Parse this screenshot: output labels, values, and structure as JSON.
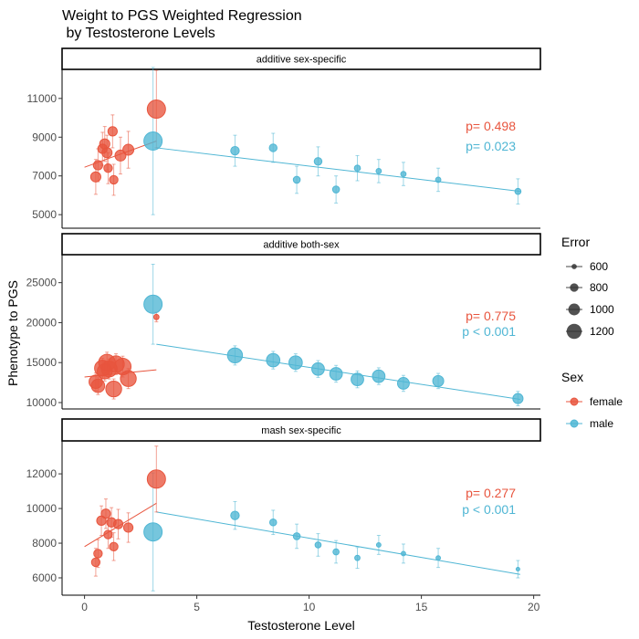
{
  "chart_data": {
    "type": "scatter",
    "title_lines": [
      "Weight to PGS Weighted Regression",
      " by Testosterone Levels"
    ],
    "xlabel": "Testosterone Level",
    "ylabel": "Phenotype to PGS",
    "xlim": [
      -1,
      20.3
    ],
    "x_ticks": [
      0,
      5,
      10,
      15,
      20
    ],
    "colors": {
      "female": "#E8553E",
      "male": "#4FB6D4"
    },
    "legend": {
      "placement": "right",
      "error_title": "Error",
      "error_entries": [
        {
          "label": "600",
          "value": 600
        },
        {
          "label": "800",
          "value": 800
        },
        {
          "label": "1000",
          "value": 1000
        },
        {
          "label": "1200",
          "value": 1200
        }
      ],
      "sex_title": "Sex",
      "sex_entries": [
        {
          "label": "female",
          "key": "female"
        },
        {
          "label": "male",
          "key": "male"
        }
      ]
    },
    "panels": [
      {
        "strip": "additive sex-specific",
        "ylim": [
          4300,
          12500
        ],
        "y_ticks": [
          5000,
          7000,
          9000,
          11000
        ],
        "y_tick_labels": [
          "5000",
          "7000",
          "9000",
          "11000"
        ],
        "pvalues": [
          {
            "sex": "female",
            "text": "p= 0.498"
          },
          {
            "sex": "male",
            "text": "p= 0.023"
          }
        ],
        "fit_lines": [
          {
            "sex": "female",
            "x": [
              0.0,
              3.2
            ],
            "y": [
              7450,
              8800
            ]
          },
          {
            "sex": "male",
            "x": [
              3.2,
              19.4
            ],
            "y": [
              8450,
              6200
            ]
          }
        ],
        "points": [
          {
            "sex": "female",
            "x": 0.5,
            "y": 6950,
            "err": 900
          },
          {
            "sex": "female",
            "x": 0.6,
            "y": 7550,
            "err": 850
          },
          {
            "sex": "female",
            "x": 0.8,
            "y": 8400,
            "err": 850
          },
          {
            "sex": "female",
            "x": 0.9,
            "y": 8650,
            "err": 900
          },
          {
            "sex": "female",
            "x": 1.0,
            "y": 8200,
            "err": 900
          },
          {
            "sex": "female",
            "x": 1.05,
            "y": 7400,
            "err": 800
          },
          {
            "sex": "female",
            "x": 1.25,
            "y": 9300,
            "err": 850
          },
          {
            "sex": "female",
            "x": 1.3,
            "y": 6800,
            "err": 800
          },
          {
            "sex": "female",
            "x": 1.6,
            "y": 8050,
            "err": 950
          },
          {
            "sex": "female",
            "x": 1.95,
            "y": 8350,
            "err": 950
          },
          {
            "sex": "female",
            "x": 3.2,
            "y": 10450,
            "err": 2000
          },
          {
            "sex": "male",
            "x": 3.05,
            "y": 8800,
            "err": 3800
          },
          {
            "sex": "male",
            "x": 6.7,
            "y": 8300,
            "err": 800
          },
          {
            "sex": "male",
            "x": 8.4,
            "y": 8450,
            "err": 750
          },
          {
            "sex": "male",
            "x": 9.45,
            "y": 6800,
            "err": 700
          },
          {
            "sex": "male",
            "x": 10.4,
            "y": 7750,
            "err": 750
          },
          {
            "sex": "male",
            "x": 11.2,
            "y": 6300,
            "err": 700
          },
          {
            "sex": "male",
            "x": 12.15,
            "y": 7400,
            "err": 650
          },
          {
            "sex": "male",
            "x": 13.1,
            "y": 7250,
            "err": 600
          },
          {
            "sex": "male",
            "x": 14.2,
            "y": 7100,
            "err": 600
          },
          {
            "sex": "male",
            "x": 15.75,
            "y": 6800,
            "err": 600
          },
          {
            "sex": "male",
            "x": 19.3,
            "y": 6200,
            "err": 650
          }
        ]
      },
      {
        "strip": "additive both-sex",
        "ylim": [
          9200,
          28500
        ],
        "y_ticks": [
          10000,
          15000,
          20000,
          25000
        ],
        "y_tick_labels": [
          "10000",
          "15000",
          "20000",
          "25000"
        ],
        "pvalues": [
          {
            "sex": "female",
            "text": "p= 0.775"
          },
          {
            "sex": "male",
            "text": "p < 0.001"
          }
        ],
        "fit_lines": [
          {
            "sex": "female",
            "x": [
              0.0,
              3.2
            ],
            "y": [
              13200,
              14100
            ]
          },
          {
            "sex": "male",
            "x": [
              3.2,
              19.4
            ],
            "y": [
              17300,
              10400
            ]
          }
        ],
        "points": [
          {
            "sex": "female",
            "x": 0.5,
            "y": 12600,
            "err": 1100
          },
          {
            "sex": "female",
            "x": 0.6,
            "y": 12100,
            "err": 1100
          },
          {
            "sex": "female",
            "x": 0.8,
            "y": 14300,
            "err": 1250
          },
          {
            "sex": "female",
            "x": 0.9,
            "y": 13900,
            "err": 1200
          },
          {
            "sex": "female",
            "x": 1.0,
            "y": 15000,
            "err": 1300
          },
          {
            "sex": "female",
            "x": 1.1,
            "y": 14200,
            "err": 1250
          },
          {
            "sex": "female",
            "x": 1.3,
            "y": 11700,
            "err": 1250
          },
          {
            "sex": "female",
            "x": 1.4,
            "y": 14800,
            "err": 1300
          },
          {
            "sex": "female",
            "x": 1.7,
            "y": 14500,
            "err": 1300
          },
          {
            "sex": "female",
            "x": 1.95,
            "y": 13000,
            "err": 1250
          },
          {
            "sex": "female",
            "x": 3.2,
            "y": 20700,
            "err": 600
          },
          {
            "sex": "male",
            "x": 3.05,
            "y": 22300,
            "err": 5000
          },
          {
            "sex": "male",
            "x": 6.7,
            "y": 15900,
            "err": 1200
          },
          {
            "sex": "male",
            "x": 8.4,
            "y": 15300,
            "err": 1100
          },
          {
            "sex": "male",
            "x": 9.4,
            "y": 15000,
            "err": 1100
          },
          {
            "sex": "male",
            "x": 10.4,
            "y": 14200,
            "err": 1050
          },
          {
            "sex": "male",
            "x": 11.2,
            "y": 13600,
            "err": 1050
          },
          {
            "sex": "male",
            "x": 12.15,
            "y": 12900,
            "err": 1050
          },
          {
            "sex": "male",
            "x": 13.1,
            "y": 13300,
            "err": 1050
          },
          {
            "sex": "male",
            "x": 14.2,
            "y": 12400,
            "err": 1000
          },
          {
            "sex": "male",
            "x": 15.75,
            "y": 12700,
            "err": 950
          },
          {
            "sex": "male",
            "x": 19.3,
            "y": 10500,
            "err": 900
          }
        ]
      },
      {
        "strip": "mash sex-specific",
        "ylim": [
          5000,
          13900
        ],
        "y_ticks": [
          6000,
          8000,
          10000,
          12000
        ],
        "y_tick_labels": [
          "6000",
          "8000",
          "10000",
          "12000"
        ],
        "pvalues": [
          {
            "sex": "female",
            "text": "p= 0.277"
          },
          {
            "sex": "male",
            "text": "p < 0.001"
          }
        ],
        "fit_lines": [
          {
            "sex": "female",
            "x": [
              0.0,
              3.2
            ],
            "y": [
              7800,
              10300
            ]
          },
          {
            "sex": "male",
            "x": [
              3.2,
              19.4
            ],
            "y": [
              9800,
              6200
            ]
          }
        ],
        "points": [
          {
            "sex": "female",
            "x": 0.5,
            "y": 6900,
            "err": 800
          },
          {
            "sex": "female",
            "x": 0.6,
            "y": 7400,
            "err": 800
          },
          {
            "sex": "female",
            "x": 0.75,
            "y": 9300,
            "err": 850
          },
          {
            "sex": "female",
            "x": 0.95,
            "y": 9700,
            "err": 850
          },
          {
            "sex": "female",
            "x": 1.05,
            "y": 8500,
            "err": 800
          },
          {
            "sex": "female",
            "x": 1.2,
            "y": 9200,
            "err": 850
          },
          {
            "sex": "female",
            "x": 1.3,
            "y": 7800,
            "err": 800
          },
          {
            "sex": "female",
            "x": 1.5,
            "y": 9100,
            "err": 850
          },
          {
            "sex": "female",
            "x": 1.95,
            "y": 8900,
            "err": 850
          },
          {
            "sex": "female",
            "x": 3.2,
            "y": 11700,
            "err": 1900
          },
          {
            "sex": "male",
            "x": 3.05,
            "y": 8650,
            "err": 3400
          },
          {
            "sex": "male",
            "x": 6.7,
            "y": 9600,
            "err": 800
          },
          {
            "sex": "male",
            "x": 8.4,
            "y": 9200,
            "err": 700
          },
          {
            "sex": "male",
            "x": 9.45,
            "y": 8400,
            "err": 700
          },
          {
            "sex": "male",
            "x": 10.4,
            "y": 7900,
            "err": 650
          },
          {
            "sex": "male",
            "x": 11.2,
            "y": 7500,
            "err": 650
          },
          {
            "sex": "male",
            "x": 12.15,
            "y": 7150,
            "err": 600
          },
          {
            "sex": "male",
            "x": 13.1,
            "y": 7900,
            "err": 550
          },
          {
            "sex": "male",
            "x": 14.2,
            "y": 7400,
            "err": 550
          },
          {
            "sex": "male",
            "x": 15.75,
            "y": 7150,
            "err": 550
          },
          {
            "sex": "male",
            "x": 19.3,
            "y": 6500,
            "err": 500
          }
        ]
      }
    ]
  }
}
